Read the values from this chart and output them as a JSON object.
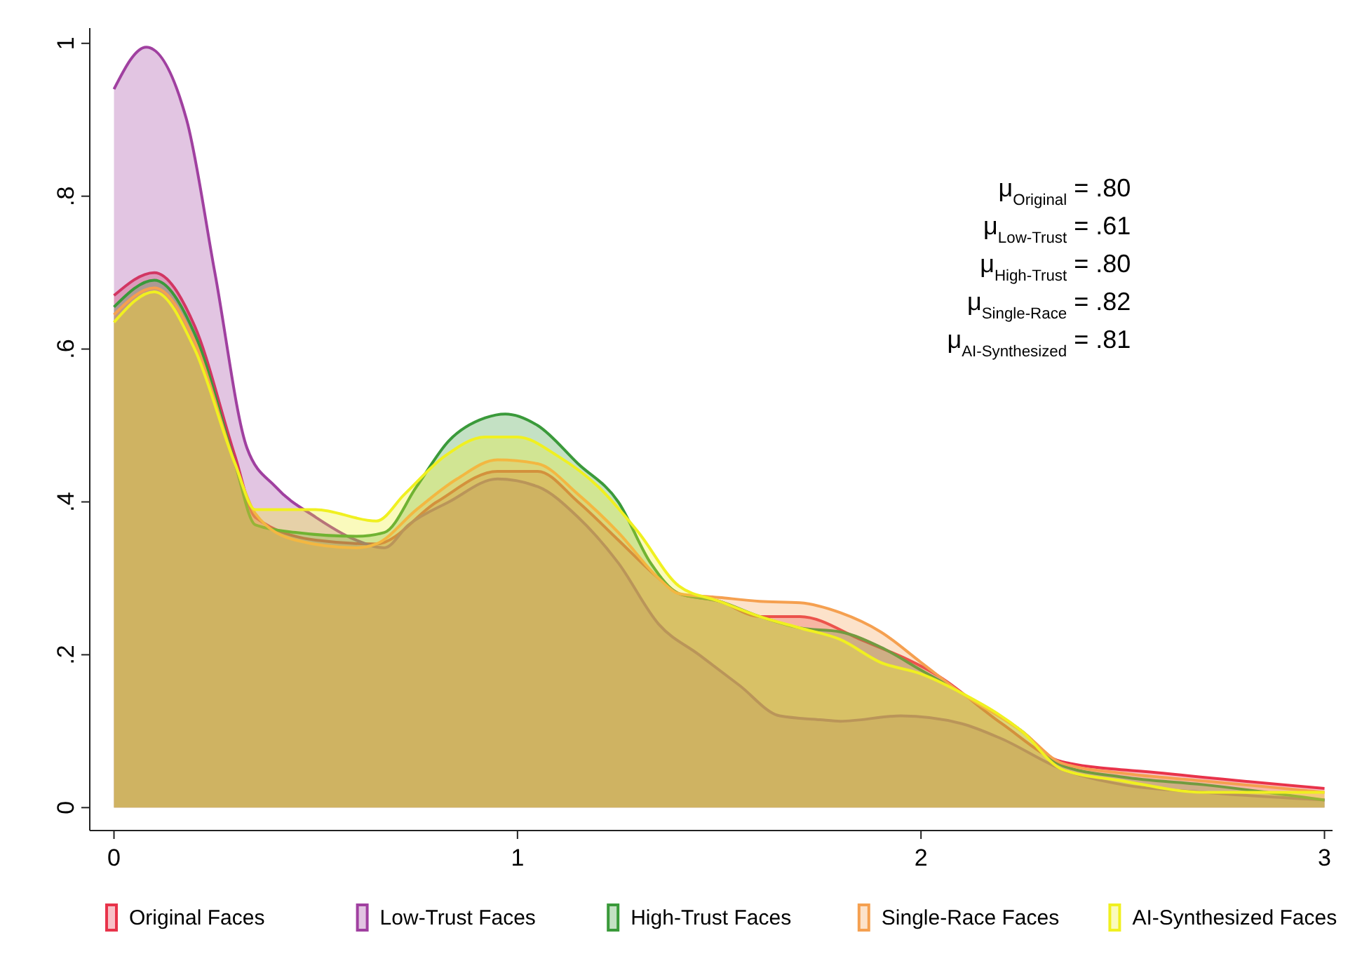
{
  "chart_data": {
    "type": "area",
    "xlim": [
      -0.06,
      3.02
    ],
    "ylim": [
      -0.03,
      1.02
    ],
    "xticks": [
      0,
      1,
      2,
      3
    ],
    "yticks": [
      0,
      {
        "value": 0.2,
        "label": ".2"
      },
      {
        "value": 0.4,
        "label": ".4"
      },
      {
        "value": 0.6,
        "label": ".6"
      },
      {
        "value": 0.8,
        "label": ".8"
      },
      1
    ],
    "grid": false,
    "legend": "bottom",
    "annotations": [
      "μ$_{Original}$ = .80",
      "μ$_{Low-Trust}$ = .61",
      "μ$_{High-Trust}$ = .80",
      "μ$_{Single-Race}$ = .82",
      "μ$_{AI-Synthesized}$ = .81"
    ],
    "series": [
      {
        "name": "Original Faces",
        "color": "#e8334a",
        "x": [
          0,
          0.1,
          0.2,
          0.3,
          0.35,
          0.5,
          0.65,
          0.8,
          0.95,
          1.05,
          1.15,
          1.25,
          1.35,
          1.4,
          1.5,
          1.6,
          1.7,
          1.85,
          2.05,
          2.2,
          2.35,
          2.6,
          3
        ],
        "values": [
          0.67,
          0.7,
          0.63,
          0.46,
          0.38,
          0.35,
          0.345,
          0.4,
          0.44,
          0.44,
          0.4,
          0.35,
          0.3,
          0.28,
          0.27,
          0.25,
          0.25,
          0.22,
          0.17,
          0.11,
          0.06,
          0.045,
          0.025
        ]
      },
      {
        "name": "Low-Trust Faces",
        "color": "#a040a0",
        "x": [
          0,
          0.08,
          0.18,
          0.25,
          0.33,
          0.4,
          0.5,
          0.6,
          0.67,
          0.73,
          0.83,
          0.95,
          1.05,
          1.15,
          1.25,
          1.35,
          1.45,
          1.55,
          1.65,
          1.75,
          1.8,
          1.95,
          2.1,
          2.2,
          2.35,
          2.5,
          2.7,
          3
        ],
        "values": [
          0.94,
          0.995,
          0.9,
          0.7,
          0.47,
          0.42,
          0.38,
          0.35,
          0.34,
          0.37,
          0.4,
          0.43,
          0.42,
          0.38,
          0.32,
          0.24,
          0.2,
          0.16,
          0.12,
          0.115,
          0.113,
          0.12,
          0.11,
          0.09,
          0.05,
          0.03,
          0.02,
          0.01
        ]
      },
      {
        "name": "High-Trust Faces",
        "color": "#3a9a3a",
        "x": [
          0,
          0.1,
          0.2,
          0.3,
          0.35,
          0.45,
          0.6,
          0.67,
          0.75,
          0.83,
          0.92,
          0.97,
          1.05,
          1.15,
          1.25,
          1.33,
          1.4,
          1.5,
          1.6,
          1.7,
          1.8,
          1.9,
          2,
          2.1,
          2.25,
          2.35,
          2.5,
          2.7,
          3
        ],
        "values": [
          0.655,
          0.69,
          0.62,
          0.45,
          0.37,
          0.36,
          0.355,
          0.36,
          0.42,
          0.48,
          0.51,
          0.515,
          0.5,
          0.45,
          0.4,
          0.32,
          0.28,
          0.27,
          0.25,
          0.235,
          0.23,
          0.21,
          0.18,
          0.15,
          0.1,
          0.055,
          0.04,
          0.03,
          0.01
        ]
      },
      {
        "name": "Single-Race Faces",
        "color": "#f5a050",
        "x": [
          0,
          0.1,
          0.2,
          0.3,
          0.35,
          0.45,
          0.6,
          0.65,
          0.75,
          0.85,
          0.95,
          1.05,
          1.15,
          1.25,
          1.35,
          1.4,
          1.5,
          1.6,
          1.7,
          1.8,
          1.9,
          2,
          2.1,
          2.25,
          2.35,
          2.5,
          2.7,
          3
        ],
        "values": [
          0.645,
          0.68,
          0.61,
          0.45,
          0.385,
          0.35,
          0.34,
          0.345,
          0.39,
          0.43,
          0.455,
          0.45,
          0.41,
          0.36,
          0.3,
          0.28,
          0.275,
          0.27,
          0.268,
          0.255,
          0.23,
          0.19,
          0.15,
          0.1,
          0.058,
          0.045,
          0.035,
          0.02
        ]
      },
      {
        "name": "AI-Synthesized Faces",
        "color": "#f0f020",
        "x": [
          0,
          0.1,
          0.2,
          0.3,
          0.35,
          0.5,
          0.65,
          0.72,
          0.82,
          0.92,
          1,
          1.1,
          1.2,
          1.3,
          1.4,
          1.5,
          1.6,
          1.7,
          1.8,
          1.9,
          2,
          2.1,
          2.25,
          2.35,
          2.5,
          2.7,
          3
        ],
        "values": [
          0.635,
          0.675,
          0.6,
          0.45,
          0.39,
          0.39,
          0.375,
          0.41,
          0.46,
          0.485,
          0.485,
          0.46,
          0.42,
          0.36,
          0.29,
          0.27,
          0.25,
          0.235,
          0.22,
          0.19,
          0.175,
          0.15,
          0.1,
          0.05,
          0.035,
          0.02,
          0.02
        ]
      }
    ]
  }
}
